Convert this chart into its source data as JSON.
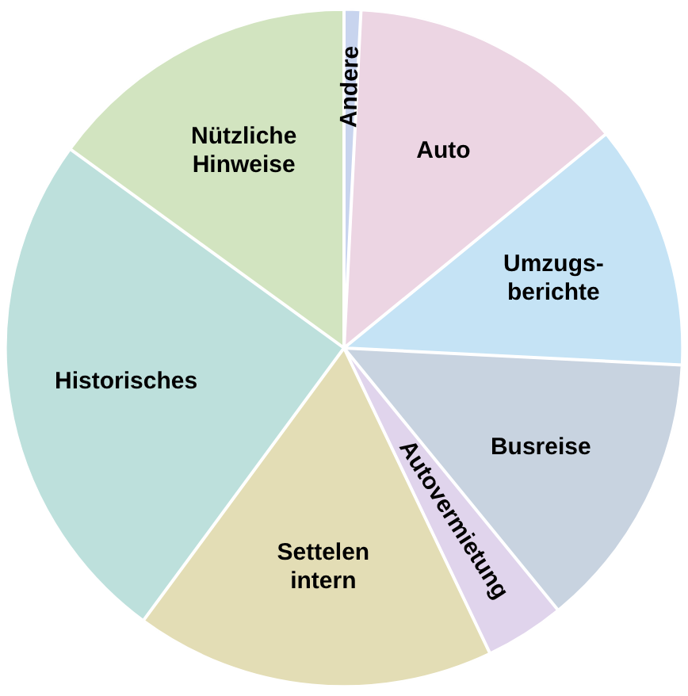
{
  "chart_data": {
    "type": "pie",
    "categories": [
      "Andere",
      "Auto",
      "Umzugs-\nberichte",
      "Busreise",
      "Autovermietung",
      "Settelen\nintern",
      "Historisches",
      "Nützliche\nHinweise"
    ],
    "values": [
      0.8,
      13.3,
      11.7,
      13.3,
      3.8,
      17.2,
      24.9,
      15
    ],
    "colors": [
      "#c8d4ee",
      "#ecd5e3",
      "#c5e3f5",
      "#c8d3e0",
      "#e0d4ec",
      "#e3ddb5",
      "#bde0dc",
      "#d2e4c0"
    ],
    "legend": false
  }
}
